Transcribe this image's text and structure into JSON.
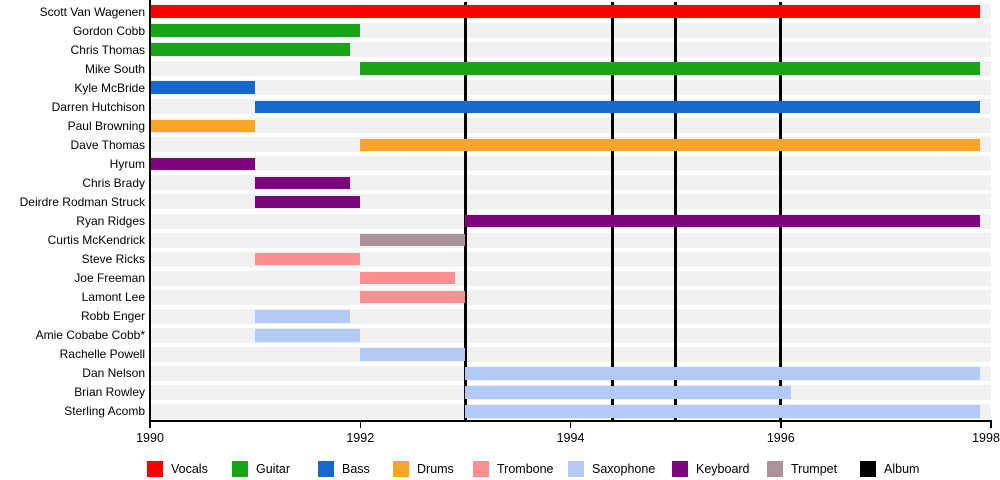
{
  "chart_data": {
    "type": "bar",
    "variant": "band-member-gantt-timeline",
    "title": "",
    "x_axis": {
      "min": 1990,
      "max": 1998,
      "ticks": [
        1990,
        1992,
        1994,
        1996,
        1998
      ],
      "tick_labels": [
        "1990",
        "1992",
        "1994",
        "1996",
        "1998"
      ]
    },
    "members": [
      {
        "name": "Scott Van Wagenen",
        "instrument": "Vocals",
        "start": 1990.0,
        "end": 1997.9
      },
      {
        "name": "Gordon Cobb",
        "instrument": "Guitar",
        "start": 1990.0,
        "end": 1992.0
      },
      {
        "name": "Chris Thomas",
        "instrument": "Guitar",
        "start": 1990.0,
        "end": 1991.9
      },
      {
        "name": "Mike South",
        "instrument": "Guitar",
        "start": 1992.0,
        "end": 1997.9
      },
      {
        "name": "Kyle McBride",
        "instrument": "Bass",
        "start": 1990.0,
        "end": 1991.0
      },
      {
        "name": "Darren Hutchison",
        "instrument": "Bass",
        "start": 1991.0,
        "end": 1997.9
      },
      {
        "name": "Paul Browning",
        "instrument": "Drums",
        "start": 1990.0,
        "end": 1991.0
      },
      {
        "name": "Dave Thomas",
        "instrument": "Drums",
        "start": 1992.0,
        "end": 1997.9
      },
      {
        "name": "Hyrum",
        "instrument": "Keyboard",
        "start": 1990.0,
        "end": 1991.0
      },
      {
        "name": "Chris Brady",
        "instrument": "Keyboard",
        "start": 1991.0,
        "end": 1991.9
      },
      {
        "name": "Deirdre Rodman Struck",
        "instrument": "Keyboard",
        "start": 1991.0,
        "end": 1992.0
      },
      {
        "name": "Ryan Ridges",
        "instrument": "Keyboard",
        "start": 1993.0,
        "end": 1997.9
      },
      {
        "name": "Curtis McKendrick",
        "instrument": "Trumpet",
        "start": 1992.0,
        "end": 1993.0
      },
      {
        "name": "Steve Ricks",
        "instrument": "Trombone",
        "start": 1991.0,
        "end": 1992.0
      },
      {
        "name": "Joe Freeman",
        "instrument": "Trombone",
        "start": 1992.0,
        "end": 1992.9
      },
      {
        "name": "Lamont Lee",
        "instrument": "Trombone",
        "start": 1992.0,
        "end": 1993.0
      },
      {
        "name": "Robb Enger",
        "instrument": "Saxophone",
        "start": 1991.0,
        "end": 1991.9
      },
      {
        "name": "Amie Cobabe Cobb*",
        "instrument": "Saxophone",
        "start": 1991.0,
        "end": 1992.0
      },
      {
        "name": "Rachelle Powell",
        "instrument": "Saxophone",
        "start": 1992.0,
        "end": 1993.0
      },
      {
        "name": "Dan Nelson",
        "instrument": "Saxophone",
        "start": 1993.0,
        "end": 1997.9
      },
      {
        "name": "Brian Rowley",
        "instrument": "Saxophone",
        "start": 1993.0,
        "end": 1996.1
      },
      {
        "name": "Sterling Acomb",
        "instrument": "Saxophone",
        "start": 1993.0,
        "end": 1997.9
      }
    ],
    "album_release_lines": [
      1993.0,
      1994.4,
      1995.0,
      1996.0
    ],
    "legend": [
      {
        "label": "Vocals",
        "color": "#fa0000"
      },
      {
        "label": "Guitar",
        "color": "#17a517"
      },
      {
        "label": "Bass",
        "color": "#1569c9"
      },
      {
        "label": "Drums",
        "color": "#faa428"
      },
      {
        "label": "Trombone",
        "color": "#fc9090"
      },
      {
        "label": "Saxophone",
        "color": "#b3c9f5"
      },
      {
        "label": "Keyboard",
        "color": "#7d067d"
      },
      {
        "label": "Trumpet",
        "color": "#a99298"
      },
      {
        "label": "Album",
        "color": "#000000"
      }
    ],
    "colors": {
      "row_stripe": "#f0f0f0",
      "axis": "#000000",
      "background": "#ffffff"
    }
  }
}
